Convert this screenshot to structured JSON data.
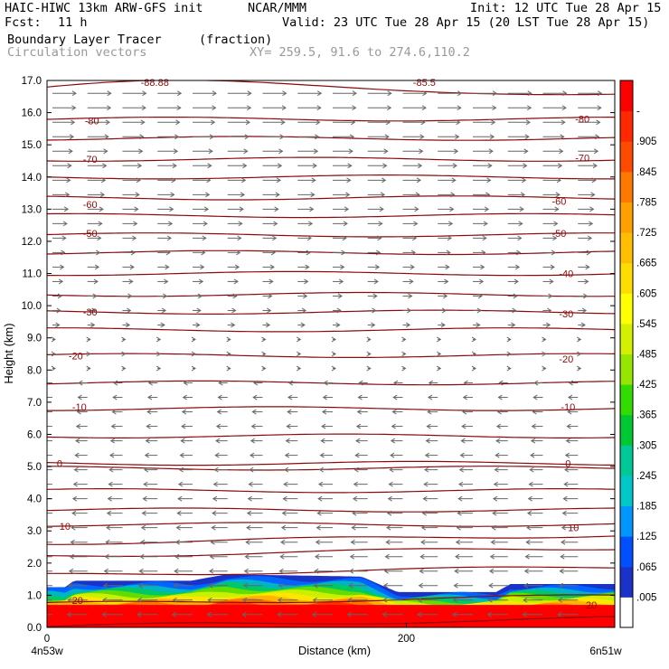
{
  "header": {
    "model": "HAIC-HIWC 13km ARW-GFS init",
    "org": "NCAR/MMM",
    "init": "Init: 12 UTC Tue 28 Apr 15",
    "fcst_label": "Fcst:",
    "fcst_value": "11 h",
    "valid": "Valid: 23 UTC Tue 28 Apr 15 (20 LST Tue 28 Apr 15)",
    "field": "Boundary Layer Tracer",
    "units": "(fraction)",
    "overlay": "Circulation vectors",
    "xy": "XY= 259.5, 91.6 to 274.6,110.2"
  },
  "colors": {
    "contour": "#8b0a0a",
    "vector": "#666666",
    "text_gray": "#999999"
  },
  "chart_data": {
    "type": "heatmap",
    "xlabel": "Distance (km)",
    "ylabel": "Height (km)",
    "xlim": [
      0,
      316
    ],
    "ylim": [
      0,
      17
    ],
    "y_ticks": [
      "0.0",
      "1.0",
      "2.0",
      "3.0",
      "4.0",
      "5.0",
      "6.0",
      "7.0",
      "8.0",
      "9.0",
      "10.0",
      "11.0",
      "12.0",
      "13.0",
      "14.0",
      "15.0",
      "16.0",
      "17.0"
    ],
    "x_ticks": [
      {
        "value": 0,
        "label": "0"
      },
      {
        "value": 200,
        "label": "200"
      }
    ],
    "x_endpoints": [
      "4n53w",
      "6n51w"
    ],
    "colorbar": {
      "labels": [
        ".005",
        ".065",
        ".125",
        ".185",
        ".245",
        ".305",
        ".365",
        ".425",
        ".485",
        ".545",
        ".605",
        ".665",
        ".725",
        ".785",
        ".845",
        ".905",
        "-"
      ],
      "colors": [
        "#ffffff",
        "#1a32c8",
        "#0050ff",
        "#0096ff",
        "#00c8c8",
        "#00c896",
        "#00c832",
        "#32dc00",
        "#96e600",
        "#d2f000",
        "#ffff00",
        "#ffdc00",
        "#ffbe00",
        "#ffa000",
        "#ff7800",
        "#ff4b00",
        "#ff2800",
        "#ff0000"
      ]
    },
    "boundary_layer_tracer": {
      "description_values": "fraction values near surface: ~0.95 below 0.7 km, decreasing to ~0.1 near top of layer",
      "layer_top_km": [
        {
          "x": 0,
          "top": 1.25
        },
        {
          "x": 10,
          "top": 1.25
        },
        {
          "x": 15,
          "top": 1.45
        },
        {
          "x": 80,
          "top": 1.45
        },
        {
          "x": 100,
          "top": 1.65
        },
        {
          "x": 175,
          "top": 1.58
        },
        {
          "x": 195,
          "top": 1.1
        },
        {
          "x": 250,
          "top": 1.1
        },
        {
          "x": 258,
          "top": 1.35
        },
        {
          "x": 316,
          "top": 1.35
        }
      ]
    },
    "contour_labels": [
      {
        "x": 17,
        "y": 0.85,
        "text": "20"
      },
      {
        "x": 10,
        "y": 3.15,
        "text": "10"
      },
      {
        "x": 7,
        "y": 5.1,
        "text": "0"
      },
      {
        "x": 18,
        "y": 6.85,
        "text": "-10"
      },
      {
        "x": 16,
        "y": 8.45,
        "text": "-20"
      },
      {
        "x": 24,
        "y": 9.8,
        "text": "-30"
      },
      {
        "x": 24,
        "y": 12.25,
        "text": "-50"
      },
      {
        "x": 24,
        "y": 13.15,
        "text": "-60"
      },
      {
        "x": 24,
        "y": 14.55,
        "text": "-70"
      },
      {
        "x": 25,
        "y": 15.75,
        "text": "-80"
      },
      {
        "x": 60,
        "y": 16.95,
        "text": "-88.88"
      },
      {
        "x": 210,
        "y": 16.95,
        "text": "-85.5"
      },
      {
        "x": 303,
        "y": 0.7,
        "text": "20"
      },
      {
        "x": 293,
        "y": 3.1,
        "text": "10"
      },
      {
        "x": 290,
        "y": 5.1,
        "text": "0"
      },
      {
        "x": 290,
        "y": 6.85,
        "text": "-10"
      },
      {
        "x": 289,
        "y": 8.35,
        "text": "-20"
      },
      {
        "x": 289,
        "y": 9.75,
        "text": "-30"
      },
      {
        "x": 289,
        "y": 11.0,
        "text": "-40"
      },
      {
        "x": 285,
        "y": 12.25,
        "text": "-50"
      },
      {
        "x": 285,
        "y": 13.25,
        "text": "-60"
      },
      {
        "x": 298,
        "y": 14.6,
        "text": "-70"
      },
      {
        "x": 298,
        "y": 15.8,
        "text": "-80"
      }
    ],
    "contour_levels_km": [
      0.15,
      0.85,
      1.75,
      2.35,
      2.75,
      3.2,
      3.65,
      4.25,
      4.95,
      5.1,
      5.95,
      6.8,
      7.6,
      8.45,
      9.25,
      9.8,
      10.35,
      11.0,
      11.65,
      12.2,
      12.8,
      13.35,
      14.0,
      14.55,
      15.2,
      15.8,
      16.75
    ],
    "vectors": {
      "description": "westward (left-pointing) wind vectors below ~8 km, eastward (right-pointing) above ~9 km, strongest aloft"
    }
  }
}
